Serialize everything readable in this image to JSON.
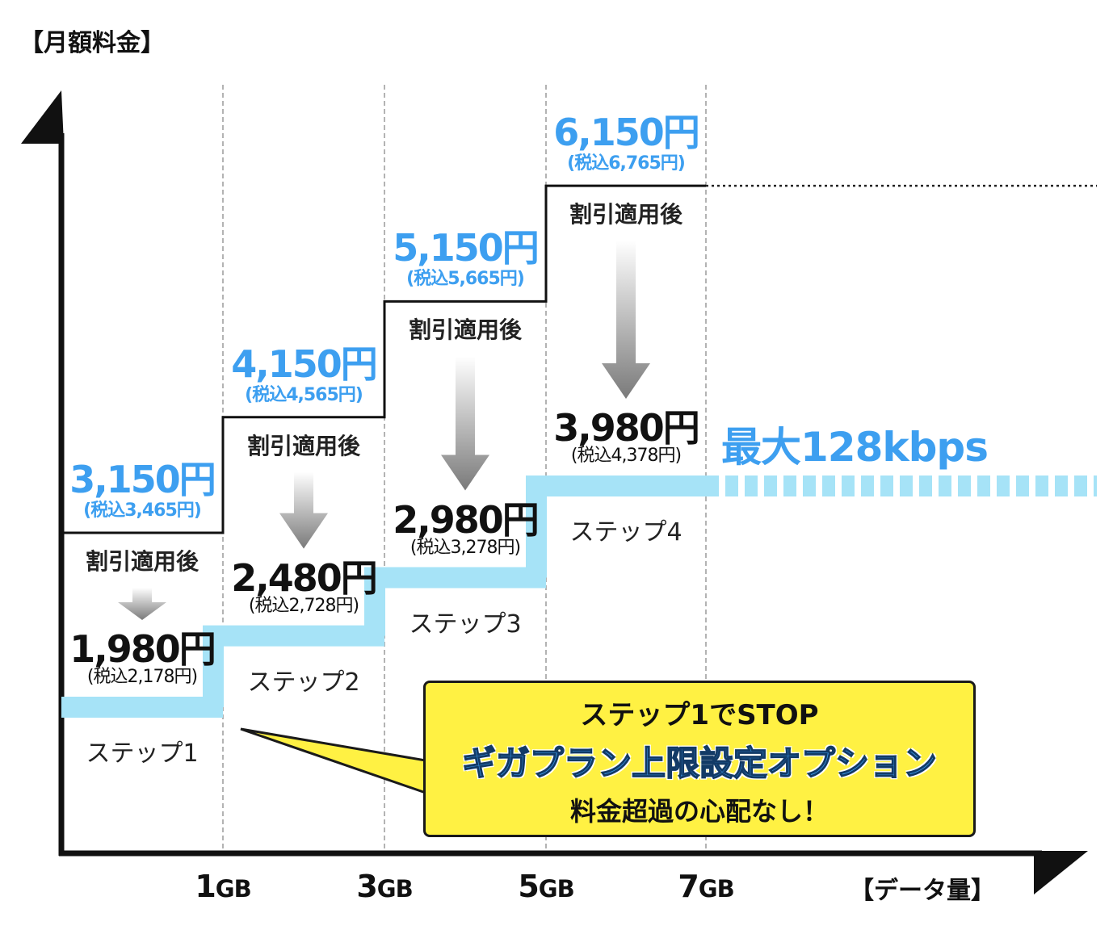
{
  "axes": {
    "y_title": "【月額料金】",
    "x_title": "【データ量】"
  },
  "chart_data": {
    "type": "step",
    "x_unit": "GB",
    "x_ticks": [
      "1",
      "3",
      "5",
      "7"
    ],
    "steps": [
      {
        "name": "ステップ1",
        "range_gb": [
          0,
          1
        ],
        "price": "3,150円",
        "price_tax": "(税込3,465円)",
        "discount_label": "割引適用後",
        "discount_price": "1,980円",
        "discount_price_tax": "(税込2,178円)",
        "list_price_value": 3150,
        "discount_value": 1980
      },
      {
        "name": "ステップ2",
        "range_gb": [
          1,
          3
        ],
        "price": "4,150円",
        "price_tax": "(税込4,565円)",
        "discount_label": "割引適用後",
        "discount_price": "2,480円",
        "discount_price_tax": "(税込2,728円)",
        "list_price_value": 4150,
        "discount_value": 2480
      },
      {
        "name": "ステップ3",
        "range_gb": [
          3,
          5
        ],
        "price": "5,150円",
        "price_tax": "(税込5,665円)",
        "discount_label": "割引適用後",
        "discount_price": "2,980円",
        "discount_price_tax": "(税込3,278円)",
        "list_price_value": 5150,
        "discount_value": 2980
      },
      {
        "name": "ステップ4",
        "range_gb": [
          5,
          7
        ],
        "price": "6,150円",
        "price_tax": "(税込6,765円)",
        "discount_label": "割引適用後",
        "discount_price": "3,980円",
        "discount_price_tax": "(税込4,378円)",
        "list_price_value": 6150,
        "discount_value": 3980
      }
    ],
    "after_limit_label": "最大128kbps",
    "colors": {
      "list_price": "#3d9ff0",
      "discount_line": "#a6e3f7",
      "axis": "#111111",
      "callout_bg": "#fff143"
    }
  },
  "callout": {
    "line1": "ステップ1でSTOP",
    "line2": "ギガプラン上限設定オプション",
    "line3": "料金超過の心配なし！"
  }
}
